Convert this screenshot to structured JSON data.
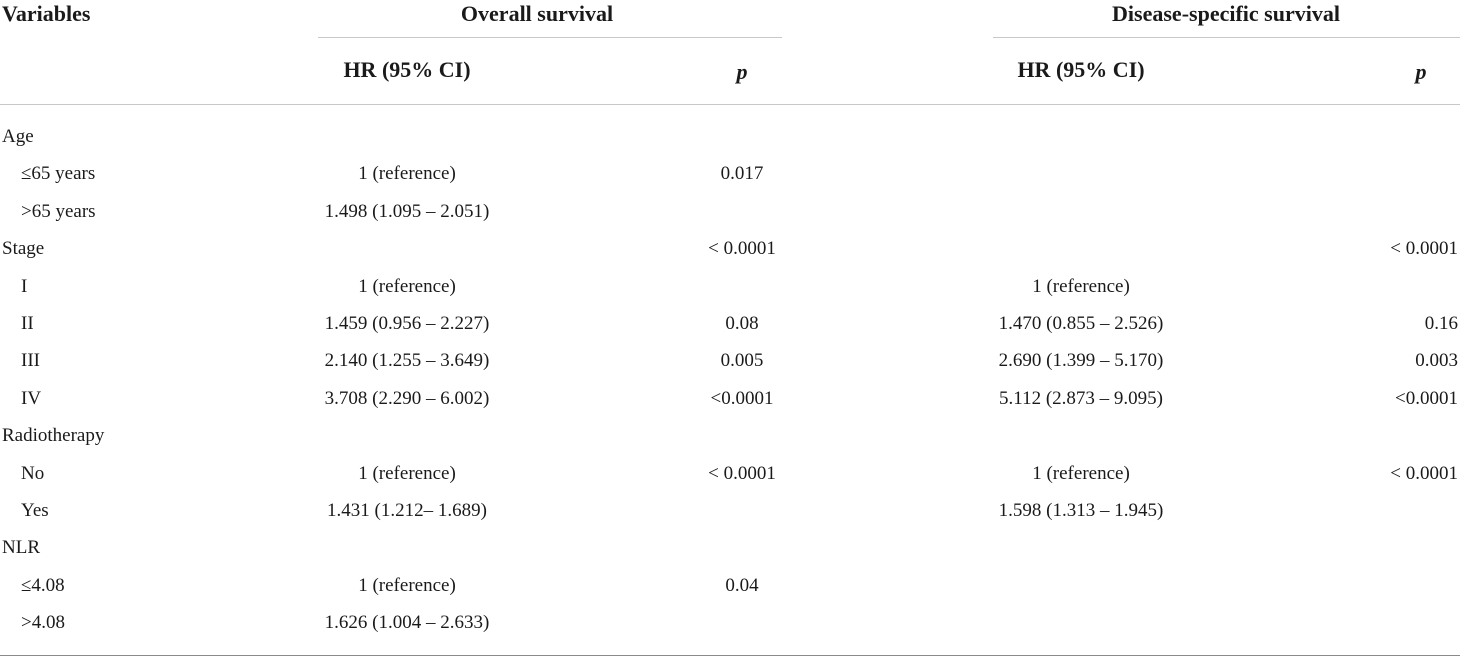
{
  "header": {
    "variables": "Variables",
    "overall": "Overall survival",
    "disease": "Disease-specific survival",
    "hr": "HR (95% CI)",
    "p": "p"
  },
  "rows": [
    {
      "label": "Age",
      "group": true,
      "os_hr": "",
      "os_p": "",
      "ds_hr": "",
      "ds_p": ""
    },
    {
      "label": "≤65 years",
      "group": false,
      "os_hr": "1 (reference)",
      "os_p": "0.017",
      "ds_hr": "",
      "ds_p": ""
    },
    {
      "label": ">65 years",
      "group": false,
      "os_hr": "1.498 (1.095 – 2.051)",
      "os_p": "",
      "ds_hr": "",
      "ds_p": ""
    },
    {
      "label": "Stage",
      "group": true,
      "os_hr": "",
      "os_p": "< 0.0001",
      "ds_hr": "",
      "ds_p": "< 0.0001"
    },
    {
      "label": "I",
      "group": false,
      "os_hr": "1 (reference)",
      "os_p": "",
      "ds_hr": "1 (reference)",
      "ds_p": ""
    },
    {
      "label": "II",
      "group": false,
      "os_hr": "1.459 (0.956 – 2.227)",
      "os_p": "0.08",
      "ds_hr": "1.470 (0.855 – 2.526)",
      "ds_p": "0.16"
    },
    {
      "label": "III",
      "group": false,
      "os_hr": "2.140 (1.255 – 3.649)",
      "os_p": "0.005",
      "ds_hr": "2.690 (1.399 – 5.170)",
      "ds_p": "0.003"
    },
    {
      "label": "IV",
      "group": false,
      "os_hr": "3.708 (2.290 – 6.002)",
      "os_p": "<0.0001",
      "ds_hr": "5.112 (2.873 – 9.095)",
      "ds_p": "<0.0001"
    },
    {
      "label": "Radiotherapy",
      "group": true,
      "os_hr": "",
      "os_p": "",
      "ds_hr": "",
      "ds_p": ""
    },
    {
      "label": "No",
      "group": false,
      "os_hr": "1 (reference)",
      "os_p": "< 0.0001",
      "ds_hr": "1 (reference)",
      "ds_p": "< 0.0001"
    },
    {
      "label": "Yes",
      "group": false,
      "os_hr": "1.431 (1.212– 1.689)",
      "os_p": "",
      "ds_hr": "1.598 (1.313 – 1.945)",
      "ds_p": ""
    },
    {
      "label": "NLR",
      "group": true,
      "os_hr": "",
      "os_p": "",
      "ds_hr": "",
      "ds_p": ""
    },
    {
      "label": "≤4.08",
      "group": false,
      "os_hr": "1 (reference)",
      "os_p": "0.04",
      "ds_hr": "",
      "ds_p": ""
    },
    {
      "label": ">4.08",
      "group": false,
      "os_hr": "1.626 (1.004 – 2.633)",
      "os_p": "",
      "ds_hr": "",
      "ds_p": ""
    }
  ]
}
